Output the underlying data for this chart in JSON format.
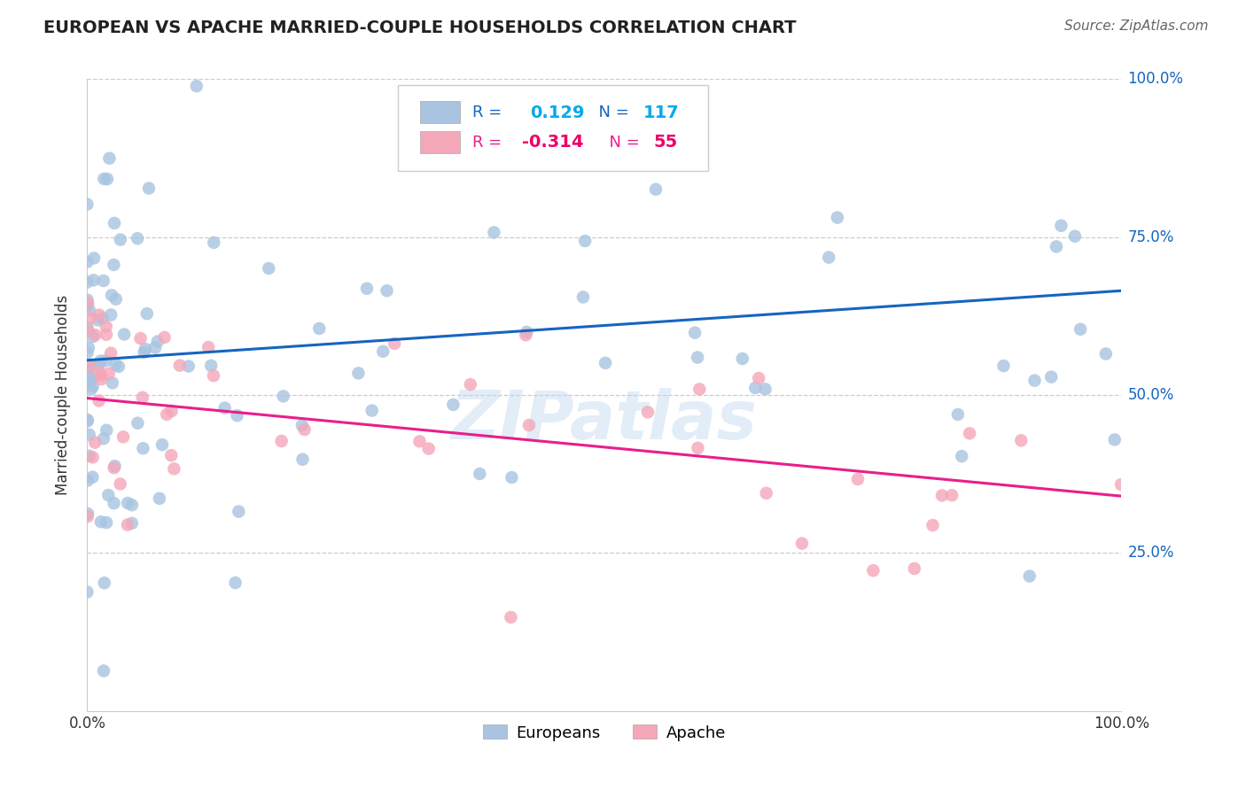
{
  "title": "EUROPEAN VS APACHE MARRIED-COUPLE HOUSEHOLDS CORRELATION CHART",
  "source": "Source: ZipAtlas.com",
  "ylabel": "Married-couple Households",
  "watermark": "ZIPatlas",
  "legend_europeans": "Europeans",
  "legend_apache": "Apache",
  "blue_color": "#a8c4e0",
  "pink_color": "#f4a7b9",
  "blue_line_color": "#1565c0",
  "pink_line_color": "#e91e8c",
  "title_color": "#212121",
  "source_color": "#666666",
  "grid_color": "#cccccc",
  "ytick_color": "#1565c0",
  "background_color": "#ffffff",
  "xlim": [
    0.0,
    1.0
  ],
  "ylim": [
    0.0,
    1.0
  ],
  "blue_r": 0.129,
  "blue_n": 117,
  "blue_intercept": 0.555,
  "blue_slope": 0.11,
  "pink_r": -0.314,
  "pink_n": 55,
  "pink_intercept": 0.495,
  "pink_slope": -0.155,
  "ytick_positions": [
    0.25,
    0.5,
    0.75,
    1.0
  ],
  "ytick_labels": [
    "25.0%",
    "50.0%",
    "75.0%",
    "100.0%"
  ],
  "xtick_positions": [
    0.0,
    0.25,
    0.5,
    0.75,
    1.0
  ],
  "xtick_labels": [
    "0.0%",
    "",
    "",
    "",
    "100.0%"
  ]
}
